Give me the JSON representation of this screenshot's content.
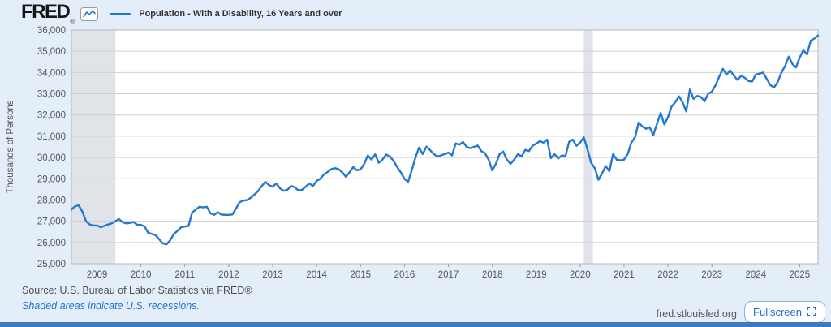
{
  "header": {
    "logo": "FRED",
    "logo_reg": "®",
    "legend_label": "Population - With a Disability, 16 Years and over"
  },
  "footer": {
    "source": "Source: U.S. Bureau of Labor Statistics via FRED®",
    "recession_note": "Shaded areas indicate U.S. recessions.",
    "site": "fred.stlouisfed.org",
    "fullscreen_label": "Fullscreen"
  },
  "chart_data": {
    "type": "line",
    "title": "Population - With a Disability, 16 Years and over",
    "ylabel": "Thousands of Persons",
    "xlabel": "",
    "grid": true,
    "legend_position": "top-left",
    "ylim": [
      25000,
      36000
    ],
    "y_tick_step": 1000,
    "xlim": [
      2008.417,
      2025.417
    ],
    "x_ticks": [
      2009,
      2010,
      2011,
      2012,
      2013,
      2014,
      2015,
      2016,
      2017,
      2018,
      2019,
      2020,
      2021,
      2022,
      2023,
      2024,
      2025
    ],
    "line_color": "#2478cf",
    "colors": {
      "plot_bg": "#ffffff",
      "grid": "#cfcfcf",
      "border": "#b5b5b5",
      "recession": "#e0e4e9",
      "tick": "#999999",
      "text": "#555555"
    },
    "recessions": [
      [
        2008.417,
        2009.42
      ],
      [
        2020.083,
        2020.29
      ]
    ],
    "series": [
      {
        "name": "Population - With a Disability, 16 Years and over",
        "units": "Thousands of Persons",
        "frequency": "monthly",
        "start_year": 2008,
        "start_month": 6,
        "values": [
          27550,
          27700,
          27750,
          27450,
          27000,
          26850,
          26800,
          26800,
          26720,
          26780,
          26850,
          26900,
          27000,
          27100,
          26950,
          26900,
          26920,
          26960,
          26830,
          26830,
          26750,
          26450,
          26400,
          26340,
          26150,
          25950,
          25910,
          26100,
          26400,
          26550,
          26720,
          26750,
          26780,
          27410,
          27550,
          27680,
          27650,
          27680,
          27370,
          27300,
          27420,
          27310,
          27300,
          27300,
          27320,
          27600,
          27900,
          27970,
          28000,
          28100,
          28250,
          28420,
          28650,
          28850,
          28700,
          28620,
          28780,
          28550,
          28430,
          28480,
          28660,
          28600,
          28450,
          28480,
          28620,
          28780,
          28650,
          28900,
          29000,
          29200,
          29320,
          29450,
          29500,
          29450,
          29300,
          29100,
          29300,
          29550,
          29400,
          29440,
          29700,
          30100,
          29900,
          30150,
          29750,
          29900,
          30140,
          30050,
          29850,
          29550,
          29300,
          29000,
          28850,
          29400,
          30000,
          30470,
          30160,
          30510,
          30350,
          30160,
          30050,
          30100,
          30160,
          30230,
          30100,
          30660,
          30600,
          30730,
          30500,
          30430,
          30500,
          30560,
          30300,
          30200,
          29900,
          29400,
          29700,
          30160,
          30280,
          29900,
          29700,
          29900,
          30160,
          30050,
          30360,
          30300,
          30550,
          30650,
          30770,
          30700,
          30840,
          29970,
          30160,
          29950,
          30100,
          30070,
          30740,
          30840,
          30550,
          30700,
          30950,
          30380,
          29750,
          29500,
          28950,
          29250,
          29600,
          29350,
          30160,
          29900,
          29870,
          29900,
          30160,
          30700,
          30950,
          31650,
          31460,
          31350,
          31420,
          31050,
          31600,
          32100,
          31550,
          31900,
          32400,
          32600,
          32880,
          32600,
          32170,
          33200,
          32760,
          32900,
          32840,
          32650,
          33000,
          33100,
          33400,
          33800,
          34170,
          33900,
          34100,
          33850,
          33650,
          33850,
          33750,
          33600,
          33580,
          33900,
          33950,
          34000,
          33700,
          33400,
          33300,
          33560,
          34000,
          34300,
          34750,
          34400,
          34240,
          34700,
          35050,
          34850,
          35500,
          35600,
          35740
        ]
      }
    ]
  }
}
